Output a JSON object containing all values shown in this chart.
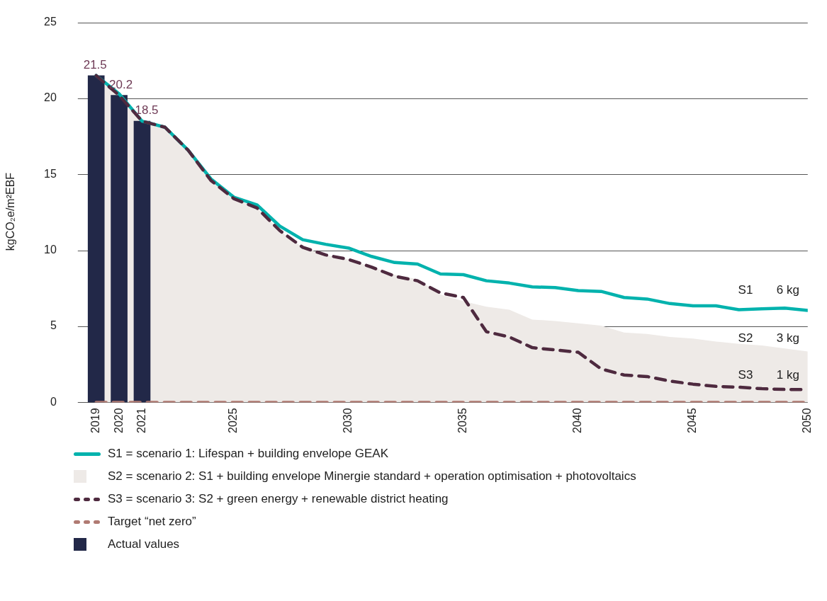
{
  "chart_data": {
    "type": "line",
    "ylabel": "kgCO₂e/m²EBF",
    "xlim": [
      2018.2,
      2050
    ],
    "xticks": [
      2019,
      2020,
      2021,
      2025,
      2030,
      2035,
      2040,
      2045,
      2050
    ],
    "ylim": [
      0,
      25
    ],
    "yticks": [
      0,
      5,
      10,
      15,
      20,
      25
    ],
    "grid": "y",
    "legend": "bottom",
    "x": [
      2019,
      2020,
      2021,
      2022,
      2023,
      2024,
      2025,
      2026,
      2027,
      2028,
      2029,
      2030,
      2031,
      2032,
      2033,
      2034,
      2035,
      2036,
      2037,
      2038,
      2039,
      2040,
      2041,
      2042,
      2043,
      2044,
      2045,
      2046,
      2047,
      2048,
      2049,
      2050
    ],
    "series": [
      {
        "name": "S2 = scenario 2: S1 + building envelope Minergie standard + operation optimisation + photovoltaics",
        "type": "area",
        "color": "#eeeae7",
        "values": [
          21.5,
          20.2,
          18.5,
          18.1,
          16.6,
          14.6,
          13.4,
          12.8,
          11.3,
          10.2,
          9.7,
          9.4,
          8.9,
          8.4,
          8.1,
          7.1,
          6.65,
          6.3,
          6.1,
          5.45,
          5.35,
          5.2,
          5.05,
          4.6,
          4.5,
          4.3,
          4.2,
          4.0,
          3.85,
          3.75,
          3.55,
          3.35
        ]
      },
      {
        "name": "S1 = scenario 1: Lifespan + building envelope GEAK",
        "type": "line",
        "line_style": "solid",
        "color": "#00b2ad",
        "values": [
          21.5,
          20.3,
          18.5,
          18.1,
          16.6,
          14.7,
          13.5,
          13.0,
          11.6,
          10.7,
          10.4,
          10.15,
          9.6,
          9.2,
          9.1,
          8.45,
          8.4,
          8.0,
          7.85,
          7.6,
          7.55,
          7.35,
          7.3,
          6.9,
          6.8,
          6.5,
          6.35,
          6.35,
          6.1,
          6.15,
          6.2,
          6.05
        ]
      },
      {
        "name": "S3 = scenario 3: S2 + green energy + renewable district heating",
        "type": "line",
        "line_style": "dashed",
        "color": "#4e2a3f",
        "values": [
          21.5,
          20.2,
          18.5,
          18.1,
          16.6,
          14.6,
          13.4,
          12.8,
          11.3,
          10.2,
          9.7,
          9.4,
          8.9,
          8.3,
          8.0,
          7.2,
          6.9,
          4.65,
          4.3,
          3.6,
          3.45,
          3.3,
          2.2,
          1.8,
          1.7,
          1.4,
          1.2,
          1.05,
          1.0,
          0.9,
          0.85,
          0.85
        ]
      },
      {
        "name": "Target “net zero”",
        "type": "line",
        "line_style": "dashed",
        "color": "#b07a72",
        "values": [
          0,
          0,
          0,
          0,
          0,
          0,
          0,
          0,
          0,
          0,
          0,
          0,
          0,
          0,
          0,
          0,
          0,
          0,
          0,
          0,
          0,
          0,
          0,
          0,
          0,
          0,
          0,
          0,
          0,
          0,
          0,
          0
        ]
      },
      {
        "name": "Actual values",
        "type": "bar",
        "color": "#222848",
        "x": [
          2019,
          2020,
          2021
        ],
        "values": [
          21.5,
          20.2,
          18.5
        ],
        "value_labels": [
          "21.5",
          "20.2",
          "18.5"
        ]
      }
    ],
    "annotations": [
      "S1",
      "6 kg",
      "S2",
      "3 kg",
      "S3",
      "1 kg"
    ]
  }
}
